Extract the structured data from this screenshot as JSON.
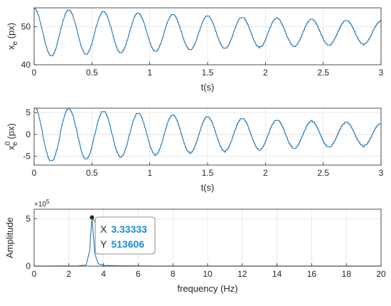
{
  "chart_data": [
    {
      "type": "line",
      "ylabel_base": "x",
      "ylabel_sub": "e",
      "ylabel_unit": " (px)",
      "xlabel": "t(s)",
      "xlim": [
        0,
        3
      ],
      "ylim": [
        40,
        55
      ],
      "xticks": [
        0,
        0.5,
        1,
        1.5,
        2,
        2.5,
        3
      ],
      "xtick_labels": [
        "0",
        "0.5",
        "1",
        "1.5",
        "2",
        "2.5",
        "3"
      ],
      "yticks": [
        40,
        50
      ],
      "ytick_labels": [
        "40",
        "50"
      ],
      "grid": true,
      "series": [
        {
          "color": "#1f77b4",
          "offset": 48.5,
          "frequency_hz": 3.33333,
          "amplitude_start": 6.4,
          "amplitude_end": 3.0
        }
      ]
    },
    {
      "type": "line",
      "ylabel_base": "x",
      "ylabel_sub": "e",
      "ylabel_sup": "0",
      "ylabel_unit": " (px)",
      "xlabel": "t(s)",
      "xlim": [
        0,
        3
      ],
      "ylim": [
        -7,
        6
      ],
      "xticks": [
        0,
        0.5,
        1,
        1.5,
        2,
        2.5,
        3
      ],
      "xtick_labels": [
        "0",
        "0.5",
        "1",
        "1.5",
        "2",
        "2.5",
        "3"
      ],
      "yticks": [
        -5,
        0,
        5
      ],
      "ytick_labels": [
        "-5",
        "0",
        "5"
      ],
      "grid": true,
      "series": [
        {
          "color": "#1f77b4",
          "offset": 0,
          "frequency_hz": 3.33333,
          "amplitude_start": 6.5,
          "amplitude_end": 2.5
        }
      ]
    },
    {
      "type": "line",
      "ylabel": "Amplitude",
      "xlabel": "frequency (Hz)",
      "xlim": [
        0,
        20
      ],
      "ylim": [
        0,
        6
      ],
      "y_exponent_base": "×10",
      "y_exponent_power": "5",
      "xticks": [
        0,
        2,
        4,
        6,
        8,
        10,
        12,
        14,
        16,
        18,
        20
      ],
      "xtick_labels": [
        "0",
        "2",
        "4",
        "6",
        "8",
        "10",
        "12",
        "14",
        "16",
        "18",
        "20"
      ],
      "yticks": [
        0,
        5
      ],
      "ytick_labels": [
        "0",
        "5"
      ],
      "grid": true,
      "series": [
        {
          "color": "#1f77b4",
          "x": [
            0,
            2.5,
            3.0,
            3.2,
            3.33333,
            3.5,
            3.7,
            4.0,
            5.0,
            7.0,
            10.0,
            20.0
          ],
          "y": [
            0.002,
            0.02,
            0.12,
            1.6,
            5.13606,
            1.3,
            0.25,
            0.08,
            0.03,
            0.01,
            0.005,
            0.003
          ]
        }
      ],
      "datatip": {
        "x_key": "X",
        "x_value": "3.33333",
        "y_key": "Y",
        "y_value": "513606",
        "point": [
          3.33333,
          5.13606
        ]
      }
    }
  ]
}
